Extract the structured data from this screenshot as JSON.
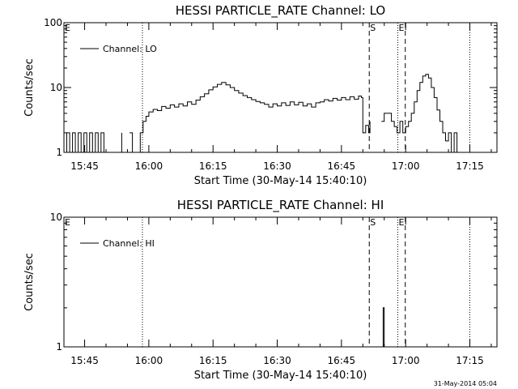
{
  "footer": {
    "timestamp": "31-May-2014 05:04"
  },
  "chart_data": [
    {
      "type": "line",
      "title": "HESSI PARTICLE_RATE Channel: LO",
      "xlabel": "Start Time (30-May-14 15:40:10)",
      "ylabel": "Counts/sec",
      "xlim": [
        "15:40:10",
        "17:21:20"
      ],
      "ylim": [
        1,
        100
      ],
      "y_scale": "log",
      "y_ticks": [
        {
          "value": 1,
          "label": "1"
        },
        {
          "value": 10,
          "label": "10"
        },
        {
          "value": 100,
          "label": "100"
        }
      ],
      "x_ticks": [
        {
          "value": "15:45",
          "label": "15:45"
        },
        {
          "value": "16:00",
          "label": "16:00"
        },
        {
          "value": "16:15",
          "label": "16:15"
        },
        {
          "value": "16:30",
          "label": "16:30"
        },
        {
          "value": "16:45",
          "label": "16:45"
        },
        {
          "value": "17:00",
          "label": "17:00"
        },
        {
          "value": "17:15",
          "label": "17:15"
        }
      ],
      "legend": {
        "label": "Channel: LO",
        "position": "top-left"
      },
      "event_lines": [
        {
          "x": "15:40:10",
          "style": "dotted",
          "label": "E"
        },
        {
          "x": "15:58:30",
          "style": "dotted",
          "label": ""
        },
        {
          "x": "16:51:30",
          "style": "dashed",
          "label": "S"
        },
        {
          "x": "16:58:10",
          "style": "dotted",
          "label": "E"
        },
        {
          "x": "16:59:55",
          "style": "dashed",
          "label": ""
        },
        {
          "x": "17:15:00",
          "style": "dotted",
          "label": ""
        }
      ],
      "series": [
        {
          "points": [
            [
              "15:40:10",
              1
            ],
            [
              "15:40:50",
              2
            ],
            [
              "15:41:30",
              1
            ],
            [
              "15:42:10",
              2
            ],
            [
              "15:42:50",
              1
            ],
            [
              "15:43:30",
              2
            ],
            [
              "15:44:10",
              1
            ],
            [
              "15:44:50",
              2
            ],
            [
              "15:45:30",
              1
            ],
            [
              "15:46:10",
              2
            ],
            [
              "15:46:50",
              1
            ],
            [
              "15:47:30",
              2
            ],
            [
              "15:48:10",
              1
            ],
            [
              "15:48:50",
              2
            ],
            [
              "15:49:30",
              1
            ],
            [
              "15:50:10",
              1
            ],
            [
              "15:53:00",
              1
            ],
            [
              "15:53:40",
              2
            ],
            [
              "15:55:30",
              2
            ],
            [
              "15:56:10",
              1
            ],
            [
              "15:57:20",
              1
            ],
            [
              "15:58:00",
              2
            ],
            [
              "15:58:40",
              3
            ],
            [
              "15:59:20",
              3.6
            ],
            [
              "16:00:00",
              4.2
            ],
            [
              "16:01:00",
              4.6
            ],
            [
              "16:02:00",
              4.4
            ],
            [
              "16:03:00",
              5.1
            ],
            [
              "16:04:00",
              4.8
            ],
            [
              "16:05:00",
              5.4
            ],
            [
              "16:06:00",
              5.0
            ],
            [
              "16:07:00",
              5.6
            ],
            [
              "16:08:00",
              5.2
            ],
            [
              "16:09:00",
              6.0
            ],
            [
              "16:10:00",
              5.5
            ],
            [
              "16:11:00",
              6.4
            ],
            [
              "16:12:00",
              7.2
            ],
            [
              "16:13:00",
              8.0
            ],
            [
              "16:14:00",
              9.2
            ],
            [
              "16:15:00",
              10.2
            ],
            [
              "16:16:00",
              11.2
            ],
            [
              "16:17:00",
              12.0
            ],
            [
              "16:18:00",
              11.0
            ],
            [
              "16:19:00",
              10.0
            ],
            [
              "16:20:00",
              9.0
            ],
            [
              "16:21:00",
              8.2
            ],
            [
              "16:22:00",
              7.5
            ],
            [
              "16:23:00",
              7.0
            ],
            [
              "16:24:00",
              6.5
            ],
            [
              "16:25:00",
              6.1
            ],
            [
              "16:26:00",
              5.8
            ],
            [
              "16:27:00",
              5.5
            ],
            [
              "16:28:00",
              5.0
            ],
            [
              "16:29:00",
              5.6
            ],
            [
              "16:30:00",
              5.2
            ],
            [
              "16:31:00",
              5.8
            ],
            [
              "16:32:00",
              5.3
            ],
            [
              "16:33:00",
              6.0
            ],
            [
              "16:34:00",
              5.4
            ],
            [
              "16:35:00",
              5.9
            ],
            [
              "16:36:00",
              5.2
            ],
            [
              "16:37:00",
              5.6
            ],
            [
              "16:38:00",
              5.0
            ],
            [
              "16:39:00",
              5.8
            ],
            [
              "16:40:00",
              6.0
            ],
            [
              "16:41:00",
              6.5
            ],
            [
              "16:42:00",
              6.2
            ],
            [
              "16:43:00",
              6.8
            ],
            [
              "16:44:00",
              6.4
            ],
            [
              "16:45:00",
              7.0
            ],
            [
              "16:46:00",
              6.5
            ],
            [
              "16:47:00",
              7.2
            ],
            [
              "16:48:00",
              6.6
            ],
            [
              "16:49:00",
              7.4
            ],
            [
              "16:49:40",
              7.0
            ],
            [
              "16:50:00",
              2.0
            ],
            [
              "16:50:40",
              2.6
            ],
            [
              "16:51:20",
              2.0
            ],
            [
              "16:51:40",
              3.0
            ],
            [
              "16:54:20",
              3.0
            ],
            [
              "16:55:00",
              4.0
            ],
            [
              "16:56:00",
              4.0
            ],
            [
              "16:56:40",
              3.0
            ],
            [
              "16:57:20",
              2.5
            ],
            [
              "16:58:00",
              2.0
            ],
            [
              "16:58:40",
              3.0
            ],
            [
              "16:59:20",
              2.0
            ],
            [
              "17:00:00",
              2.5
            ],
            [
              "17:00:40",
              3.0
            ],
            [
              "17:01:20",
              4.0
            ],
            [
              "17:02:00",
              6.0
            ],
            [
              "17:02:40",
              9.0
            ],
            [
              "17:03:20",
              12.0
            ],
            [
              "17:04:00",
              15.0
            ],
            [
              "17:04:40",
              16.0
            ],
            [
              "17:05:20",
              14.0
            ],
            [
              "17:06:00",
              10.0
            ],
            [
              "17:06:40",
              7.0
            ],
            [
              "17:07:20",
              4.5
            ],
            [
              "17:08:00",
              3.0
            ],
            [
              "17:08:40",
              2.0
            ],
            [
              "17:09:20",
              1.5
            ],
            [
              "17:10:00",
              2.0
            ],
            [
              "17:10:40",
              1.0
            ],
            [
              "17:11:20",
              2.0
            ],
            [
              "17:12:00",
              1.0
            ],
            [
              "17:12:40",
              1.0
            ]
          ]
        }
      ]
    },
    {
      "type": "line",
      "title": "HESSI PARTICLE_RATE Channel: HI",
      "xlabel": "Start Time (30-May-14 15:40:10)",
      "ylabel": "Counts/sec",
      "xlim": [
        "15:40:10",
        "17:21:20"
      ],
      "ylim": [
        1,
        10
      ],
      "y_scale": "log",
      "y_ticks": [
        {
          "value": 1,
          "label": "1"
        },
        {
          "value": 10,
          "label": "10"
        }
      ],
      "x_ticks": [
        {
          "value": "15:45",
          "label": "15:45"
        },
        {
          "value": "16:00",
          "label": "16:00"
        },
        {
          "value": "16:15",
          "label": "16:15"
        },
        {
          "value": "16:30",
          "label": "16:30"
        },
        {
          "value": "16:45",
          "label": "16:45"
        },
        {
          "value": "17:00",
          "label": "17:00"
        },
        {
          "value": "17:15",
          "label": "17:15"
        }
      ],
      "legend": {
        "label": "Channel: HI",
        "position": "top-left"
      },
      "event_lines": [
        {
          "x": "15:40:10",
          "style": "dotted",
          "label": "E"
        },
        {
          "x": "15:58:30",
          "style": "dotted",
          "label": ""
        },
        {
          "x": "16:51:30",
          "style": "dashed",
          "label": "S"
        },
        {
          "x": "16:58:10",
          "style": "dotted",
          "label": "E"
        },
        {
          "x": "16:59:55",
          "style": "dashed",
          "label": ""
        },
        {
          "x": "17:15:00",
          "style": "dotted",
          "label": ""
        }
      ],
      "series": [
        {
          "points": [
            [
              "16:54:30",
              1
            ],
            [
              "16:54:45",
              2
            ],
            [
              "16:55:00",
              1
            ]
          ]
        }
      ]
    }
  ]
}
